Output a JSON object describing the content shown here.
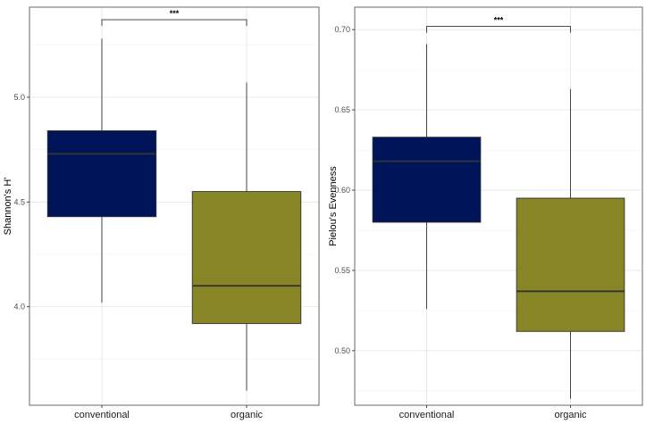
{
  "chart_data": [
    {
      "type": "box",
      "xlabel": "",
      "ylabel": "Shannon's H'",
      "categories": [
        "conventional",
        "organic"
      ],
      "colors": [
        "#001559",
        "#878526"
      ],
      "ylim": [
        3.53,
        5.43
      ],
      "yticks": [
        4.0,
        4.5,
        5.0
      ],
      "ytick_labels": [
        "4.0",
        "4.5",
        "5.0"
      ],
      "grid": true,
      "boxes": [
        {
          "category": "conventional",
          "min": 4.02,
          "q1": 4.43,
          "median": 4.73,
          "q3": 4.84,
          "max": 5.28
        },
        {
          "category": "organic",
          "min": 3.6,
          "q1": 3.92,
          "median": 4.1,
          "q3": 4.55,
          "max": 5.07
        }
      ],
      "significance": {
        "label": "***",
        "between": [
          "conventional",
          "organic"
        ],
        "y": 5.37
      }
    },
    {
      "type": "box",
      "xlabel": "",
      "ylabel": "Pielou's Evenness",
      "categories": [
        "conventional",
        "organic"
      ],
      "colors": [
        "#001559",
        "#878526"
      ],
      "ylim": [
        0.466,
        0.714
      ],
      "yticks": [
        0.5,
        0.55,
        0.6,
        0.65,
        0.7
      ],
      "ytick_labels": [
        "0.50",
        "0.55",
        "0.60",
        "0.65",
        "0.70"
      ],
      "grid": true,
      "boxes": [
        {
          "category": "conventional",
          "min": 0.526,
          "q1": 0.58,
          "median": 0.618,
          "q3": 0.633,
          "max": 0.691
        },
        {
          "category": "organic",
          "min": 0.47,
          "q1": 0.512,
          "median": 0.537,
          "q3": 0.595,
          "max": 0.663
        }
      ],
      "significance": {
        "label": "***",
        "between": [
          "conventional",
          "organic"
        ],
        "y": 0.702
      }
    }
  ]
}
